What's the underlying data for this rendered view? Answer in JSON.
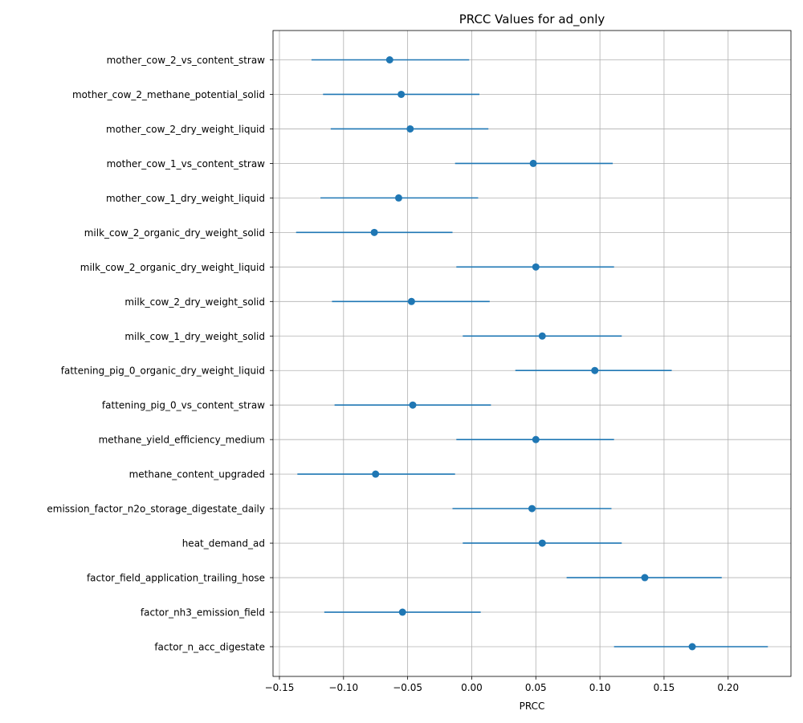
{
  "chart_data": {
    "type": "scatter",
    "title": "PRCC Values for ad_only",
    "xlabel": "PRCC",
    "ylabel": "",
    "xlim": [
      -0.155,
      0.249
    ],
    "xticks": [
      -0.15,
      -0.1,
      -0.05,
      0.0,
      0.05,
      0.1,
      0.15,
      0.2
    ],
    "xtick_labels": [
      "−0.15",
      "−0.10",
      "−0.05",
      "0.00",
      "0.05",
      "0.10",
      "0.15",
      "0.20"
    ],
    "grid": true,
    "legend": "none",
    "color": "#1f77b4",
    "categories": [
      "mother_cow_2_vs_content_straw",
      "mother_cow_2_methane_potential_solid",
      "mother_cow_2_dry_weight_liquid",
      "mother_cow_1_vs_content_straw",
      "mother_cow_1_dry_weight_liquid",
      "milk_cow_2_organic_dry_weight_solid",
      "milk_cow_2_organic_dry_weight_liquid",
      "milk_cow_2_dry_weight_solid",
      "milk_cow_1_dry_weight_solid",
      "fattening_pig_0_organic_dry_weight_liquid",
      "fattening_pig_0_vs_content_straw",
      "methane_yield_efficiency_medium",
      "methane_content_upgraded",
      "emission_factor_n2o_storage_digestate_daily",
      "heat_demand_ad",
      "factor_field_application_trailing_hose",
      "factor_nh3_emission_field",
      "factor_n_acc_digestate"
    ],
    "values": [
      -0.064,
      -0.055,
      -0.048,
      0.048,
      -0.057,
      -0.076,
      0.05,
      -0.047,
      0.055,
      0.096,
      -0.046,
      0.05,
      -0.075,
      0.047,
      0.055,
      0.135,
      -0.054,
      0.172
    ],
    "lower": [
      -0.125,
      -0.116,
      -0.11,
      -0.013,
      -0.118,
      -0.137,
      -0.012,
      -0.109,
      -0.007,
      0.034,
      -0.107,
      -0.012,
      -0.136,
      -0.015,
      -0.007,
      0.074,
      -0.115,
      0.111
    ],
    "upper": [
      -0.002,
      0.006,
      0.013,
      0.11,
      0.005,
      -0.015,
      0.111,
      0.014,
      0.117,
      0.156,
      0.015,
      0.111,
      -0.013,
      0.109,
      0.117,
      0.195,
      0.007,
      0.231
    ]
  }
}
